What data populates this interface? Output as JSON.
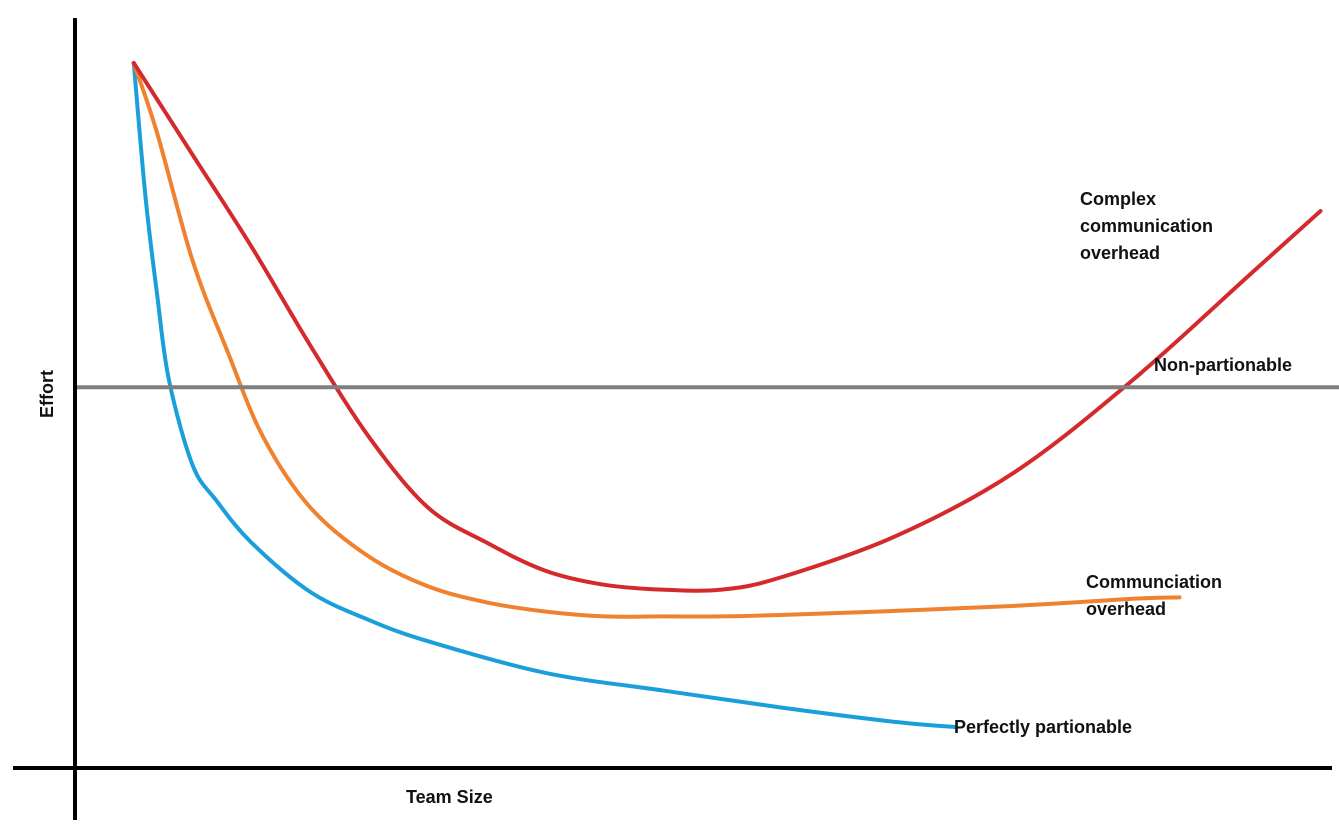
{
  "chart_data": {
    "type": "line",
    "xlabel": "Team Size",
    "ylabel": "Effort",
    "grid": false,
    "legend": "none",
    "x_ticks": [],
    "y_ticks": [],
    "xlim": [
      0,
      100
    ],
    "ylim": [
      0,
      100
    ],
    "series": [
      {
        "name": "Perfectly partionable",
        "label_lines": [
          "Perfectly partionable"
        ],
        "color": "#1a9fdb",
        "points": [
          [
            5,
            100
          ],
          [
            6,
            81
          ],
          [
            7,
            67
          ],
          [
            8,
            55
          ],
          [
            10,
            43
          ],
          [
            12,
            38
          ],
          [
            15,
            32
          ],
          [
            20,
            25
          ],
          [
            25,
            21
          ],
          [
            30,
            18
          ],
          [
            40,
            13.5
          ],
          [
            50,
            11
          ],
          [
            60,
            8.6
          ],
          [
            70,
            6.5
          ],
          [
            75,
            5.8
          ]
        ]
      },
      {
        "name": "Communciation overhead",
        "label_lines": [
          "Communciation",
          "overhead"
        ],
        "color": "#f0822f",
        "points": [
          [
            5,
            100
          ],
          [
            7,
            90
          ],
          [
            10,
            72
          ],
          [
            13,
            59
          ],
          [
            16,
            47
          ],
          [
            20,
            37
          ],
          [
            25,
            30
          ],
          [
            30,
            25.8
          ],
          [
            35,
            23.5
          ],
          [
            40,
            22.2
          ],
          [
            45,
            21.5
          ],
          [
            50,
            21.5
          ],
          [
            55,
            21.5
          ],
          [
            60,
            21.7
          ],
          [
            70,
            22.3
          ],
          [
            80,
            23
          ],
          [
            90,
            24
          ],
          [
            94,
            24.2
          ]
        ]
      },
      {
        "name": "Complex communication overhead",
        "label_lines": [
          "Complex",
          "communication",
          "overhead"
        ],
        "color": "#d42a2e",
        "points": [
          [
            5,
            100
          ],
          [
            10,
            87
          ],
          [
            15,
            74
          ],
          [
            20,
            60
          ],
          [
            25,
            47
          ],
          [
            30,
            37
          ],
          [
            35,
            32
          ],
          [
            40,
            28
          ],
          [
            45,
            26
          ],
          [
            50,
            25.3
          ],
          [
            55,
            25.3
          ],
          [
            60,
            27
          ],
          [
            70,
            33
          ],
          [
            80,
            42
          ],
          [
            90,
            55
          ],
          [
            100,
            70
          ],
          [
            106,
            79
          ]
        ]
      },
      {
        "name": "Non-partionable",
        "label_lines": [
          "Non-partionable"
        ],
        "color": "#7f7f7f",
        "points": [
          [
            0,
            54
          ],
          [
            115,
            54
          ]
        ]
      }
    ]
  },
  "colors": {
    "axis": "#000000",
    "background": "#ffffff"
  }
}
